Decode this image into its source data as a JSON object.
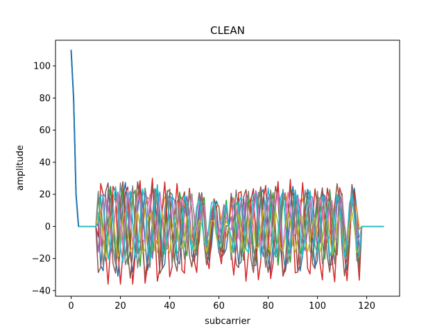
{
  "chart_data": {
    "type": "line",
    "title": "CLEAN",
    "xlabel": "subcarrier",
    "ylabel": "amplitude",
    "xlim": [
      -6.35,
      133.35
    ],
    "ylim": [
      -43.5,
      116.0
    ],
    "xticks": [
      {
        "value": 0,
        "label": "0"
      },
      {
        "value": 20,
        "label": "20"
      },
      {
        "value": 40,
        "label": "40"
      },
      {
        "value": 60,
        "label": "60"
      },
      {
        "value": 80,
        "label": "80"
      },
      {
        "value": 100,
        "label": "100"
      },
      {
        "value": 120,
        "label": "120"
      }
    ],
    "yticks": [
      {
        "value": -40,
        "label": "−40"
      },
      {
        "value": -20,
        "label": "−20"
      },
      {
        "value": 0,
        "label": "0"
      },
      {
        "value": 20,
        "label": "20"
      },
      {
        "value": 40,
        "label": "40"
      },
      {
        "value": 60,
        "label": "60"
      },
      {
        "value": 80,
        "label": "80"
      },
      {
        "value": 100,
        "label": "100"
      }
    ],
    "grid": false,
    "legend": "none",
    "series_count": 10,
    "subcarrier_count": 128,
    "palette": [
      "#1f77b4",
      "#ff7f0e",
      "#2ca02c",
      "#d62728",
      "#9467bd",
      "#8c564b",
      "#e377c2",
      "#7f7f7f",
      "#bcbd22",
      "#17becf"
    ],
    "dc_spike": {
      "x": [
        0,
        1,
        2,
        3
      ],
      "y": [
        110,
        80,
        20,
        0
      ]
    },
    "active_bands": [
      {
        "x_start": 11,
        "x_end": 63,
        "envelope": [
          {
            "x": 11,
            "y": 32
          },
          {
            "x": 20,
            "y": 34
          },
          {
            "x": 35,
            "y": 33
          },
          {
            "x": 45,
            "y": 28
          },
          {
            "x": 55,
            "y": 24
          },
          {
            "x": 63,
            "y": 21
          }
        ]
      },
      {
        "x_start": 65,
        "x_end": 117,
        "envelope": [
          {
            "x": 65,
            "y": 28
          },
          {
            "x": 75,
            "y": 31
          },
          {
            "x": 85,
            "y": 33
          },
          {
            "x": 95,
            "y": 29
          },
          {
            "x": 105,
            "y": 30
          },
          {
            "x": 117,
            "y": 31
          }
        ]
      }
    ],
    "y_min_observed": -36,
    "y_max_observed": 110
  }
}
